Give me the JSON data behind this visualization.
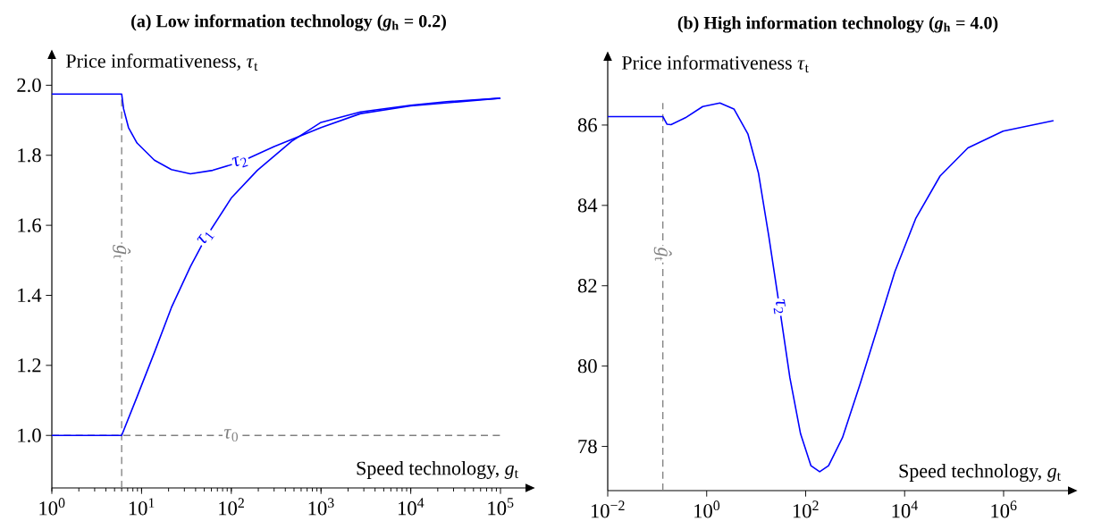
{
  "chart_data": [
    {
      "type": "line",
      "title": "(a) Low information technology (*g*$_{h}$ = 0.2)",
      "xlabel": "Speed technology, *g*$_{t}$",
      "ylabel": "Price informativeness, *τ*$_{t}$",
      "log": "x",
      "xlim": [
        1,
        190000
      ],
      "ylim": [
        0.85,
        2.075
      ],
      "xticks": [
        {
          "value": 1,
          "label": "10$^{0}$"
        },
        {
          "value": 10,
          "label": "10$^{1}$"
        },
        {
          "value": 100,
          "label": "10$^{2}$"
        },
        {
          "value": 1000,
          "label": "10$^{3}$"
        },
        {
          "value": 10000,
          "label": "10$^{4}$"
        },
        {
          "value": 100000,
          "label": "10$^{5}$"
        }
      ],
      "yticks": [
        {
          "value": 1.0,
          "label": "1.0"
        },
        {
          "value": 1.2,
          "label": "1.2"
        },
        {
          "value": 1.4,
          "label": "1.4"
        },
        {
          "value": 1.6,
          "label": "1.6"
        },
        {
          "value": 1.8,
          "label": "1.8"
        },
        {
          "value": 2.0,
          "label": "2.0"
        }
      ],
      "series": [
        {
          "name": "*τ*$_{1}$",
          "color": "#0000ff",
          "x": [
            1,
            6,
            8.9,
            13.9,
            21.5,
            35,
            52,
            100,
            195,
            470,
            1000,
            2750,
            10000,
            25000,
            100000
          ],
          "values": [
            1.0,
            1.0,
            1.11,
            1.237,
            1.365,
            1.482,
            1.565,
            1.678,
            1.757,
            1.84,
            1.894,
            1.924,
            1.943,
            1.953,
            1.963
          ]
        },
        {
          "name": "*τ*$_{2}$",
          "color": "#0000ff",
          "x": [
            1,
            6,
            6.3,
            7.15,
            8.9,
            13.9,
            21.5,
            35,
            62,
            126,
            300,
            1000,
            2750,
            10000,
            100000
          ],
          "values": [
            1.975,
            1.975,
            1.933,
            1.879,
            1.835,
            1.786,
            1.759,
            1.747,
            1.757,
            1.781,
            1.825,
            1.879,
            1.919,
            1.941,
            1.963
          ]
        }
      ],
      "ref_lines": [
        {
          "axis": "y",
          "value": 1.0,
          "label": "*τ*$_{0}$",
          "color": "#808080",
          "line_style": "dashed"
        },
        {
          "axis": "x",
          "value": 6,
          "label": "*ĝ*$_{t}$",
          "color": "#808080",
          "line_style": "dashed"
        }
      ]
    },
    {
      "type": "line",
      "title": "(b) High information technology (*g*$_{h}$ = 4.0)",
      "xlabel": "Speed technology, *g*$_{t}$",
      "ylabel": "Price informativeness *τ*$_{t}$",
      "log": "x",
      "xlim": [
        0.01,
        20000000
      ],
      "ylim": [
        76.9,
        87.6
      ],
      "xticks": [
        {
          "value": 0.01,
          "label": "10$^{−2}$"
        },
        {
          "value": 1,
          "label": "10$^{0}$"
        },
        {
          "value": 100,
          "label": "10$^{2}$"
        },
        {
          "value": 10000,
          "label": "10$^{4}$"
        },
        {
          "value": 1000000,
          "label": "10$^{6}$"
        }
      ],
      "yticks": [
        78,
        80,
        82,
        84,
        86
      ],
      "series": [
        {
          "name": "*τ*$_{2}$",
          "color": "#0000ff",
          "x": [
            0.01,
            0.13,
            0.158,
            0.19,
            0.37,
            0.83,
            1.85,
            3.55,
            6.8,
            11.1,
            18,
            29.6,
            48,
            79,
            128,
            192,
            290,
            555,
            1250,
            2830,
            6350,
            16700,
            52000,
            190000,
            977000,
            10200000
          ],
          "values": [
            86.21,
            86.21,
            86.02,
            86.01,
            86.18,
            86.46,
            86.55,
            86.4,
            85.78,
            84.81,
            83.23,
            81.47,
            79.71,
            78.31,
            77.52,
            77.37,
            77.52,
            78.22,
            79.54,
            80.95,
            82.35,
            83.67,
            84.73,
            85.43,
            85.85,
            86.11
          ]
        }
      ],
      "ref_lines": [
        {
          "axis": "x",
          "value": 0.13,
          "label": "*ĝ*$_{t}$",
          "color": "#808080",
          "line_style": "dashed"
        }
      ]
    }
  ]
}
